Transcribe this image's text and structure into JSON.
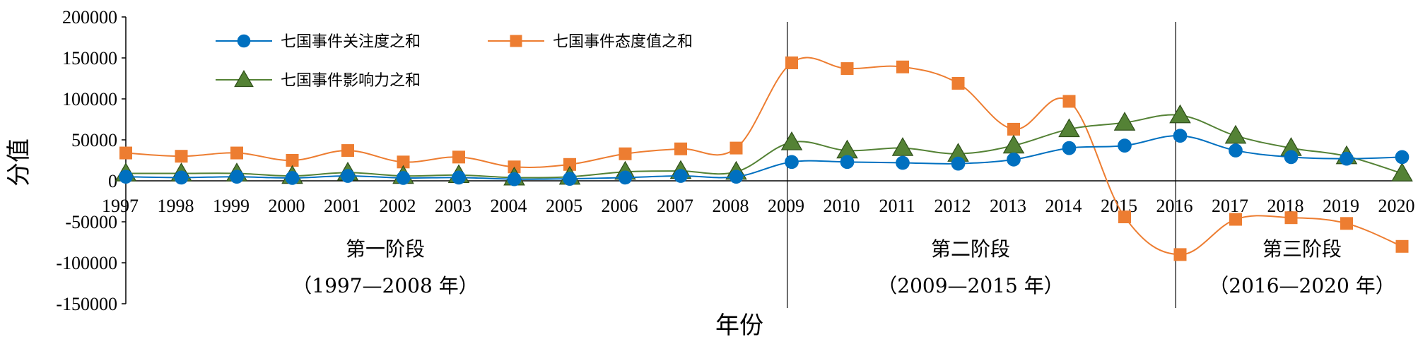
{
  "chart_data": {
    "type": "line",
    "xlabel": "年份",
    "ylabel": "分值",
    "ylim": [
      -150000,
      200000
    ],
    "yticks": [
      200000,
      150000,
      100000,
      50000,
      0,
      -50000,
      -100000,
      -150000
    ],
    "ytick_labels": [
      "200000",
      "150000",
      "100000",
      "50000",
      "0",
      "-50000",
      "-100000",
      "-150000"
    ],
    "categories": [
      "1997",
      "1998",
      "1999",
      "2000",
      "2001",
      "2002",
      "2003",
      "2004",
      "2005",
      "2006",
      "2007",
      "2008",
      "2009",
      "2010",
      "2011",
      "2012",
      "2013",
      "2014",
      "2015",
      "2016",
      "2017",
      "2018",
      "2019",
      "2020"
    ],
    "legend_position": "top-left",
    "grid": false,
    "smooth": true,
    "series": [
      {
        "name": "七国事件关注度之和",
        "color": "#0070C0",
        "marker": "circle",
        "values": [
          5000,
          4000,
          5000,
          3500,
          6000,
          3500,
          4000,
          2000,
          2500,
          4000,
          6000,
          5000,
          23000,
          23000,
          22000,
          21000,
          26000,
          40000,
          43000,
          55000,
          37000,
          29000,
          27000,
          29000
        ]
      },
      {
        "name": "七国事件态度值之和",
        "color": "#ED7D31",
        "marker": "square",
        "values": [
          34000,
          30000,
          34000,
          25000,
          37000,
          23000,
          29000,
          17000,
          20000,
          33000,
          39000,
          40000,
          144000,
          137000,
          139000,
          119000,
          63000,
          97000,
          -44000,
          -90000,
          -47000,
          -45000,
          -52000,
          -80000
        ]
      },
      {
        "name": "七国事件影响力之和",
        "color": "#548235",
        "marker": "triangle",
        "values": [
          9000,
          9000,
          9000,
          6000,
          10000,
          6000,
          7000,
          4000,
          5000,
          11000,
          12000,
          11000,
          47000,
          37000,
          40000,
          33000,
          43000,
          63000,
          71000,
          80000,
          55000,
          40000,
          30000,
          9000
        ]
      }
    ],
    "phases": [
      {
        "name": "第一阶段",
        "range": "（1997—2008 年）"
      },
      {
        "name": "第二阶段",
        "range": "（2009—2015 年）"
      },
      {
        "name": "第三阶段",
        "range": "（2016—2020 年）"
      }
    ],
    "divider_after_categories": [
      "2008",
      "2015"
    ]
  }
}
